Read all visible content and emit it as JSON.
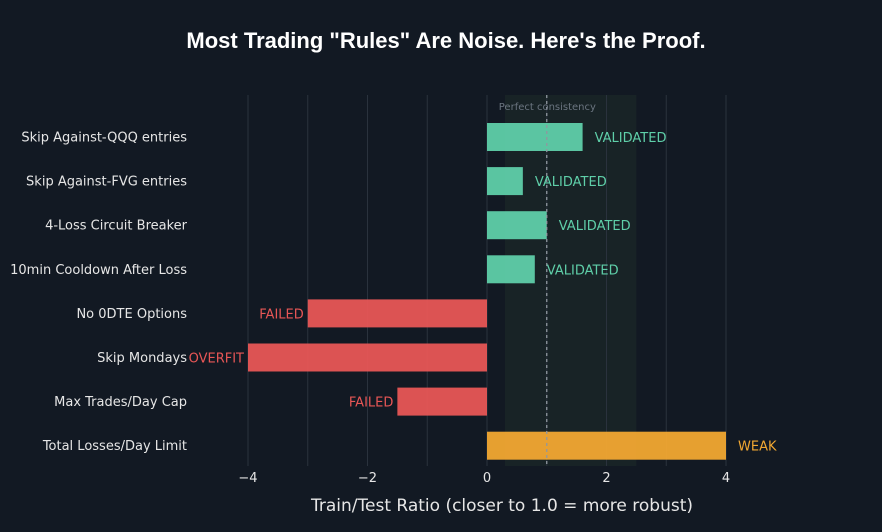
{
  "colors": {
    "background": "#121923",
    "grid": "#2a323d",
    "validated": "#5fcfa9",
    "failed": "#e85656",
    "weak": "#f2a832",
    "band": "#1e2c2a",
    "reference_line": "#8f979f"
  },
  "chart_data": {
    "type": "bar",
    "orientation": "horizontal",
    "title": "Most Trading \"Rules\" Are Noise. Here's the Proof.",
    "xlabel": "Train/Test Ratio (closer to 1.0 = more robust)",
    "ylabel": "",
    "xlim": [
      -4,
      4
    ],
    "xticks": [
      -4,
      -2,
      0,
      2,
      4
    ],
    "xtick_labels": [
      "−4",
      "−2",
      "0",
      "2",
      "4"
    ],
    "grid": true,
    "reference_line": {
      "x": 1.0,
      "label": "Perfect consistency"
    },
    "robust_band": [
      0.3,
      2.5
    ],
    "categories": [
      "Skip Against-QQQ entries",
      "Skip Against-FVG entries",
      "4-Loss Circuit Breaker",
      "10min Cooldown After Loss",
      "No 0DTE Options",
      "Skip Mondays",
      "Max Trades/Day Cap",
      "Total Losses/Day Limit"
    ],
    "values": [
      1.6,
      0.6,
      1.0,
      0.8,
      -3.0,
      -4.0,
      -1.5,
      4.0
    ],
    "statuses": [
      "VALIDATED",
      "VALIDATED",
      "VALIDATED",
      "VALIDATED",
      "FAILED",
      "OVERFIT",
      "FAILED",
      "WEAK"
    ]
  }
}
